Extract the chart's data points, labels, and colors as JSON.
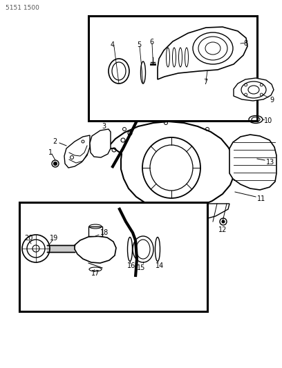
{
  "title_code": "5151 1500",
  "background_color": "#ffffff",
  "line_color": "#000000",
  "fig_width": 4.08,
  "fig_height": 5.33,
  "dpi": 100
}
